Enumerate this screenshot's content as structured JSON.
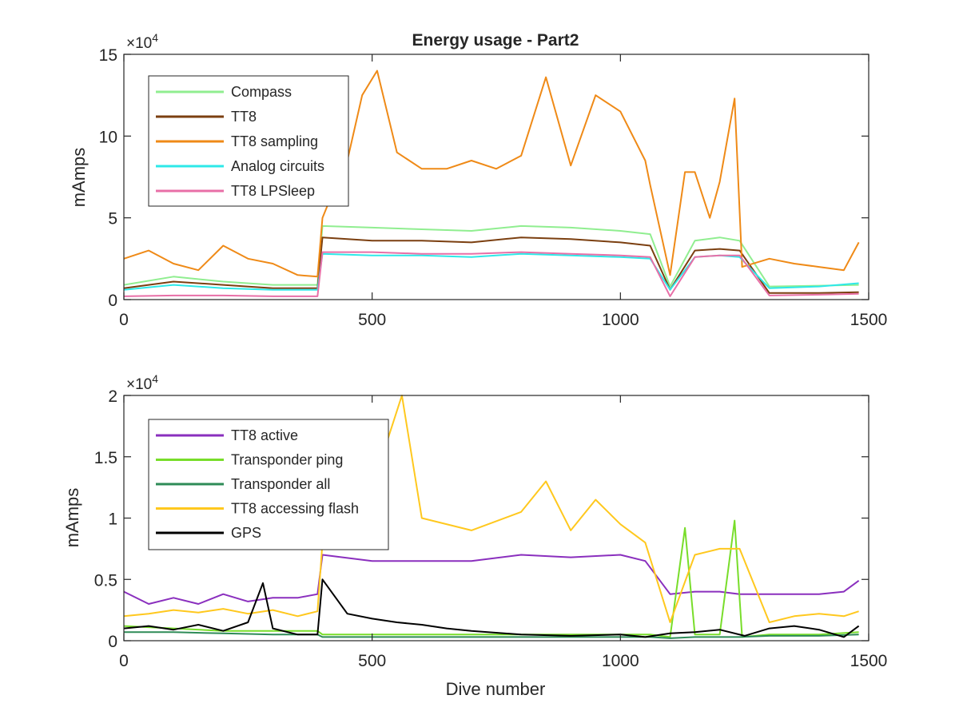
{
  "figure": {
    "title": "Energy usage - Part2"
  },
  "chart_data": [
    {
      "type": "line",
      "title": "Energy usage - Part2",
      "xlabel": "",
      "ylabel": "mAmps",
      "xlim": [
        0,
        1500
      ],
      "ylim": [
        0,
        150000
      ],
      "x_ticks": [
        0,
        500,
        1000,
        1500
      ],
      "x_tick_labels": [
        "0",
        "500",
        "1000",
        "1500"
      ],
      "y_ticks": [
        0,
        50000,
        100000,
        150000
      ],
      "y_tick_labels": [
        "0",
        "5",
        "10",
        "15"
      ],
      "y_multiplier": "×10",
      "y_multiplier_exponent": "4",
      "grid": false,
      "legend_position": "top-left",
      "series": [
        {
          "name": "Compass",
          "color": "#90ee90",
          "x": [
            0,
            100,
            200,
            300,
            390,
            400,
            500,
            600,
            700,
            800,
            900,
            1000,
            1060,
            1100,
            1150,
            1200,
            1240,
            1300,
            1400,
            1480
          ],
          "y": [
            9000,
            14000,
            11000,
            9000,
            9000,
            45000,
            44000,
            43000,
            42000,
            45000,
            44000,
            42000,
            40000,
            8000,
            36000,
            38000,
            36000,
            8000,
            8500,
            9000
          ]
        },
        {
          "name": "TT8",
          "color": "#7b3f10",
          "x": [
            0,
            100,
            200,
            300,
            390,
            400,
            500,
            600,
            700,
            800,
            900,
            1000,
            1060,
            1100,
            1150,
            1200,
            1240,
            1300,
            1400,
            1480
          ],
          "y": [
            7000,
            11000,
            9000,
            7000,
            7000,
            38000,
            36000,
            36000,
            35000,
            38000,
            37000,
            35000,
            33000,
            6000,
            30000,
            31000,
            30000,
            4000,
            4000,
            4500
          ]
        },
        {
          "name": "TT8 sampling",
          "color": "#ef8a17",
          "x": [
            0,
            50,
            100,
            150,
            200,
            250,
            300,
            350,
            390,
            400,
            420,
            450,
            480,
            510,
            550,
            600,
            650,
            700,
            750,
            800,
            850,
            900,
            950,
            1000,
            1050,
            1060,
            1100,
            1130,
            1150,
            1180,
            1200,
            1230,
            1245,
            1300,
            1350,
            1400,
            1450,
            1480
          ],
          "y": [
            25000,
            30000,
            22000,
            18000,
            33000,
            25000,
            22000,
            15000,
            14000,
            50000,
            65000,
            85000,
            125000,
            140000,
            90000,
            80000,
            80000,
            85000,
            80000,
            88000,
            136000,
            82000,
            125000,
            115000,
            85000,
            70000,
            15000,
            78000,
            78000,
            50000,
            72000,
            123000,
            20000,
            25000,
            22000,
            20000,
            18000,
            35000
          ]
        },
        {
          "name": "Analog circuits",
          "color": "#2ee8e8",
          "x": [
            0,
            100,
            200,
            300,
            390,
            400,
            500,
            600,
            700,
            800,
            900,
            1000,
            1060,
            1100,
            1150,
            1200,
            1240,
            1300,
            1400,
            1480
          ],
          "y": [
            6000,
            9000,
            7000,
            6000,
            6000,
            28000,
            27000,
            27000,
            26000,
            28000,
            27000,
            26000,
            25000,
            6000,
            26000,
            27000,
            26000,
            7000,
            8000,
            10000
          ]
        },
        {
          "name": "TT8 LPSleep",
          "color": "#e86fa7",
          "x": [
            0,
            100,
            200,
            300,
            390,
            400,
            500,
            600,
            700,
            800,
            900,
            1000,
            1060,
            1100,
            1150,
            1200,
            1240,
            1300,
            1400,
            1480
          ],
          "y": [
            2000,
            2500,
            2500,
            2000,
            2000,
            29000,
            29000,
            28000,
            28000,
            29000,
            28000,
            27000,
            26000,
            2000,
            26000,
            27000,
            27000,
            2500,
            3000,
            3500
          ]
        }
      ]
    },
    {
      "type": "line",
      "title": "",
      "xlabel": "Dive number",
      "ylabel": "mAmps",
      "xlim": [
        0,
        1500
      ],
      "ylim": [
        0,
        20000
      ],
      "x_ticks": [
        0,
        500,
        1000,
        1500
      ],
      "x_tick_labels": [
        "0",
        "500",
        "1000",
        "1500"
      ],
      "y_ticks": [
        0,
        5000,
        10000,
        15000,
        20000
      ],
      "y_tick_labels": [
        "0",
        "0.5",
        "1",
        "1.5",
        "2"
      ],
      "y_multiplier": "×10",
      "y_multiplier_exponent": "4",
      "grid": false,
      "legend_position": "top-left",
      "series": [
        {
          "name": "TT8 active",
          "color": "#8a2fbe",
          "x": [
            0,
            50,
            100,
            150,
            200,
            250,
            300,
            350,
            390,
            400,
            500,
            600,
            700,
            800,
            900,
            1000,
            1050,
            1100,
            1150,
            1200,
            1240,
            1300,
            1350,
            1400,
            1450,
            1480
          ],
          "y": [
            4000,
            3000,
            3500,
            3000,
            3800,
            3200,
            3500,
            3500,
            3800,
            7000,
            6500,
            6500,
            6500,
            7000,
            6800,
            7000,
            6500,
            3800,
            4000,
            4000,
            3800,
            3800,
            3800,
            3800,
            4000,
            4900
          ]
        },
        {
          "name": "Transponder ping",
          "color": "#78dd2a",
          "x": [
            0,
            100,
            200,
            300,
            390,
            400,
            500,
            600,
            700,
            800,
            900,
            1000,
            1060,
            1100,
            1130,
            1150,
            1200,
            1230,
            1245,
            1300,
            1400,
            1480
          ],
          "y": [
            1200,
            1000,
            800,
            800,
            800,
            500,
            500,
            500,
            500,
            500,
            500,
            500,
            500,
            300,
            9200,
            500,
            500,
            9800,
            300,
            500,
            500,
            700
          ]
        },
        {
          "name": "Transponder all",
          "color": "#2e8b57",
          "x": [
            0,
            100,
            200,
            300,
            390,
            400,
            500,
            600,
            700,
            800,
            900,
            1000,
            1060,
            1100,
            1150,
            1200,
            1240,
            1300,
            1400,
            1480
          ],
          "y": [
            700,
            700,
            600,
            500,
            500,
            300,
            300,
            300,
            300,
            300,
            300,
            300,
            300,
            200,
            300,
            300,
            300,
            400,
            400,
            500
          ]
        },
        {
          "name": "TT8 accessing flash",
          "color": "#ffc81e",
          "x": [
            0,
            50,
            100,
            150,
            200,
            250,
            300,
            350,
            390,
            400,
            480,
            520,
            560,
            600,
            700,
            800,
            850,
            900,
            950,
            1000,
            1050,
            1100,
            1150,
            1200,
            1240,
            1300,
            1350,
            1400,
            1450,
            1480
          ],
          "y": [
            2000,
            2200,
            2500,
            2300,
            2600,
            2200,
            2500,
            2000,
            2400,
            8000,
            18000,
            15000,
            20000,
            10000,
            9000,
            10500,
            13000,
            9000,
            11500,
            9500,
            8000,
            1500,
            7000,
            7500,
            7500,
            1500,
            2000,
            2200,
            2000,
            2400
          ]
        },
        {
          "name": "GPS",
          "color": "#000000",
          "x": [
            0,
            50,
            100,
            150,
            200,
            250,
            280,
            300,
            350,
            390,
            400,
            450,
            500,
            550,
            600,
            650,
            700,
            800,
            900,
            1000,
            1050,
            1100,
            1150,
            1200,
            1250,
            1300,
            1350,
            1400,
            1450,
            1480
          ],
          "y": [
            1000,
            1200,
            900,
            1300,
            800,
            1500,
            4700,
            1000,
            500,
            500,
            5000,
            2200,
            1800,
            1500,
            1300,
            1000,
            800,
            500,
            400,
            500,
            300,
            600,
            700,
            900,
            400,
            1000,
            1200,
            900,
            300,
            1200
          ]
        }
      ]
    }
  ]
}
